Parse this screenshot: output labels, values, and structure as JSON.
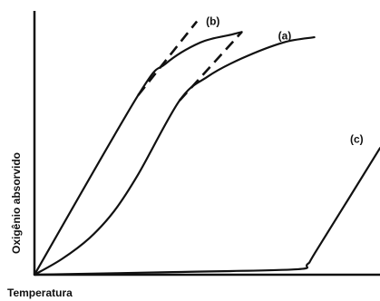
{
  "chart_data": {
    "type": "line",
    "xlabel": "Temperatura",
    "ylabel": "Oxigênio absorvido",
    "xlim": [
      0,
      100
    ],
    "ylim": [
      0,
      100
    ],
    "grid": false,
    "legend": "none",
    "colors": {
      "line": "#111111",
      "axis": "#111111",
      "background": "#ffffff"
    },
    "series": [
      {
        "name": "(b)",
        "solid": [
          [
            0,
            0
          ],
          [
            30,
            68
          ],
          [
            38,
            80
          ],
          [
            48,
            88
          ],
          [
            57,
            91
          ],
          [
            60,
            92
          ]
        ],
        "dashed": [
          [
            30,
            68
          ],
          [
            47,
            96
          ]
        ]
      },
      {
        "name": "(a)",
        "solid": [
          [
            0,
            0
          ],
          [
            8,
            6
          ],
          [
            16,
            14
          ],
          [
            23,
            24
          ],
          [
            30,
            38
          ],
          [
            42,
            66
          ],
          [
            50,
            75
          ],
          [
            60,
            82
          ],
          [
            72,
            88
          ],
          [
            81,
            90
          ]
        ],
        "dashed": [
          [
            42,
            66
          ],
          [
            60,
            92
          ]
        ]
      },
      {
        "name": "(c)",
        "solid": [
          [
            0,
            0
          ],
          [
            40,
            1
          ],
          [
            75,
            2
          ],
          [
            79,
            4
          ],
          [
            82,
            10
          ],
          [
            100,
            48
          ]
        ],
        "dashed": []
      }
    ]
  }
}
